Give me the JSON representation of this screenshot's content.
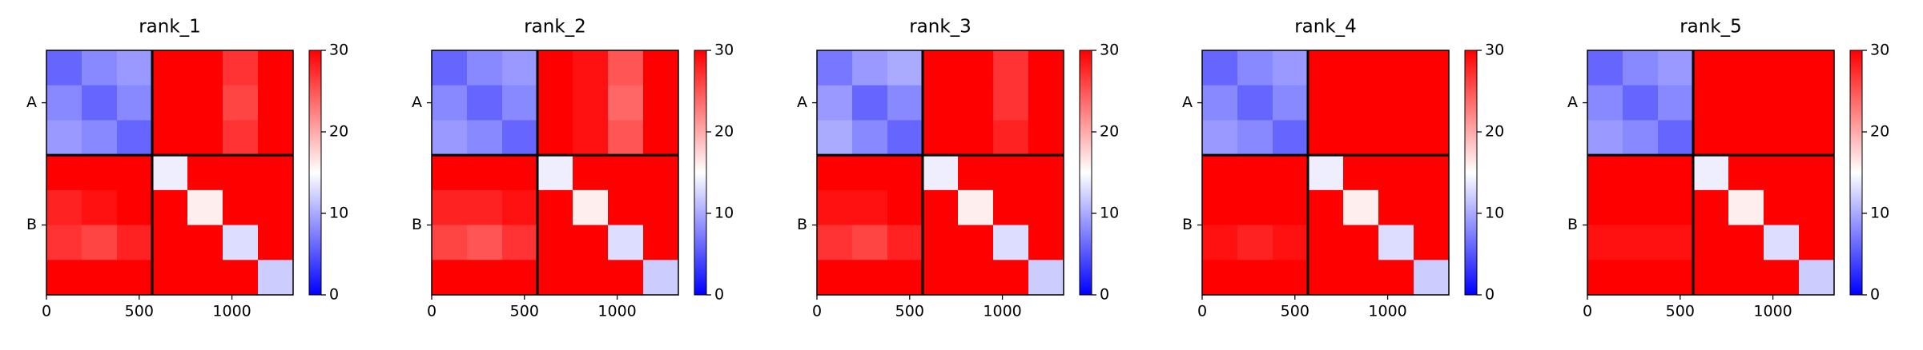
{
  "chart_data": [
    {
      "type": "heatmap",
      "title": "rank_1",
      "colormap": "bwr",
      "clim": [
        0,
        30
      ],
      "cticks": [
        0,
        10,
        20,
        30
      ],
      "xlim": [
        0,
        1330
      ],
      "xticks": [
        0,
        500,
        1000
      ],
      "ylim": [
        1330,
        0
      ],
      "yticks": [
        {
          "value": 285,
          "label": "A"
        },
        {
          "value": 950,
          "label": "B"
        }
      ],
      "chain_breaks": [
        570
      ],
      "bins": [
        0,
        190,
        380,
        570,
        760,
        950,
        1140,
        1330
      ],
      "matrix": [
        [
          6,
          8,
          9,
          30,
          30,
          27,
          30
        ],
        [
          8,
          6,
          8,
          30,
          30,
          26,
          30
        ],
        [
          9,
          8,
          6,
          30,
          30,
          27,
          30
        ],
        [
          30,
          30,
          30,
          14,
          30,
          30,
          30
        ],
        [
          28,
          29,
          30,
          30,
          16,
          30,
          30
        ],
        [
          27,
          26,
          28,
          30,
          30,
          13,
          30
        ],
        [
          30,
          30,
          30,
          30,
          30,
          30,
          12
        ]
      ]
    },
    {
      "type": "heatmap",
      "title": "rank_2",
      "colormap": "bwr",
      "clim": [
        0,
        30
      ],
      "cticks": [
        0,
        10,
        20,
        30
      ],
      "xlim": [
        0,
        1330
      ],
      "xticks": [
        0,
        500,
        1000
      ],
      "ylim": [
        1330,
        0
      ],
      "yticks": [
        {
          "value": 285,
          "label": "A"
        },
        {
          "value": 950,
          "label": "B"
        }
      ],
      "chain_breaks": [
        570
      ],
      "bins": [
        0,
        190,
        380,
        570,
        760,
        950,
        1140,
        1330
      ],
      "matrix": [
        [
          6,
          8,
          9,
          30,
          29,
          25,
          30
        ],
        [
          8,
          6,
          8,
          30,
          29,
          24,
          30
        ],
        [
          9,
          8,
          6,
          30,
          29,
          25,
          30
        ],
        [
          30,
          30,
          30,
          14,
          30,
          30,
          30
        ],
        [
          28,
          28,
          29,
          30,
          16,
          30,
          30
        ],
        [
          26,
          25,
          27,
          30,
          30,
          13,
          30
        ],
        [
          30,
          30,
          30,
          30,
          30,
          30,
          12
        ]
      ]
    },
    {
      "type": "heatmap",
      "title": "rank_3",
      "colormap": "bwr",
      "clim": [
        0,
        30
      ],
      "cticks": [
        0,
        10,
        20,
        30
      ],
      "xlim": [
        0,
        1330
      ],
      "xticks": [
        0,
        500,
        1000
      ],
      "ylim": [
        1330,
        0
      ],
      "yticks": [
        {
          "value": 285,
          "label": "A"
        },
        {
          "value": 950,
          "label": "B"
        }
      ],
      "chain_breaks": [
        570
      ],
      "bins": [
        0,
        190,
        380,
        570,
        760,
        950,
        1140,
        1330
      ],
      "matrix": [
        [
          7,
          9,
          10,
          30,
          30,
          27,
          30
        ],
        [
          9,
          6,
          8,
          30,
          30,
          27,
          30
        ],
        [
          10,
          8,
          6,
          30,
          30,
          28,
          30
        ],
        [
          30,
          30,
          30,
          14,
          30,
          30,
          30
        ],
        [
          29,
          29,
          30,
          30,
          16,
          30,
          30
        ],
        [
          27,
          26,
          28,
          30,
          30,
          13,
          30
        ],
        [
          30,
          30,
          30,
          30,
          30,
          30,
          12
        ]
      ]
    },
    {
      "type": "heatmap",
      "title": "rank_4",
      "colormap": "bwr",
      "clim": [
        0,
        30
      ],
      "cticks": [
        0,
        10,
        20,
        30
      ],
      "xlim": [
        0,
        1330
      ],
      "xticks": [
        0,
        500,
        1000
      ],
      "ylim": [
        1330,
        0
      ],
      "yticks": [
        {
          "value": 285,
          "label": "A"
        },
        {
          "value": 950,
          "label": "B"
        }
      ],
      "chain_breaks": [
        570
      ],
      "bins": [
        0,
        190,
        380,
        570,
        760,
        950,
        1140,
        1330
      ],
      "matrix": [
        [
          6,
          8,
          9,
          30,
          30,
          30,
          30
        ],
        [
          8,
          6,
          8,
          30,
          30,
          30,
          30
        ],
        [
          9,
          8,
          6,
          30,
          30,
          30,
          30
        ],
        [
          30,
          30,
          30,
          14,
          30,
          30,
          30
        ],
        [
          30,
          30,
          30,
          30,
          16,
          30,
          30
        ],
        [
          29,
          28,
          29,
          30,
          30,
          13,
          30
        ],
        [
          30,
          30,
          30,
          30,
          30,
          30,
          12
        ]
      ]
    },
    {
      "type": "heatmap",
      "title": "rank_5",
      "colormap": "bwr",
      "clim": [
        0,
        30
      ],
      "cticks": [
        0,
        10,
        20,
        30
      ],
      "xlim": [
        0,
        1330
      ],
      "xticks": [
        0,
        500,
        1000
      ],
      "ylim": [
        1330,
        0
      ],
      "yticks": [
        {
          "value": 285,
          "label": "A"
        },
        {
          "value": 950,
          "label": "B"
        }
      ],
      "chain_breaks": [
        570
      ],
      "bins": [
        0,
        190,
        380,
        570,
        760,
        950,
        1140,
        1330
      ],
      "matrix": [
        [
          6,
          8,
          9,
          30,
          30,
          30,
          30
        ],
        [
          8,
          6,
          8,
          30,
          30,
          30,
          30
        ],
        [
          9,
          8,
          6,
          30,
          30,
          30,
          30
        ],
        [
          30,
          30,
          30,
          14,
          30,
          30,
          30
        ],
        [
          30,
          30,
          30,
          30,
          16,
          30,
          30
        ],
        [
          29,
          29,
          29,
          30,
          30,
          13,
          30
        ],
        [
          30,
          30,
          30,
          30,
          30,
          30,
          12
        ]
      ]
    }
  ]
}
